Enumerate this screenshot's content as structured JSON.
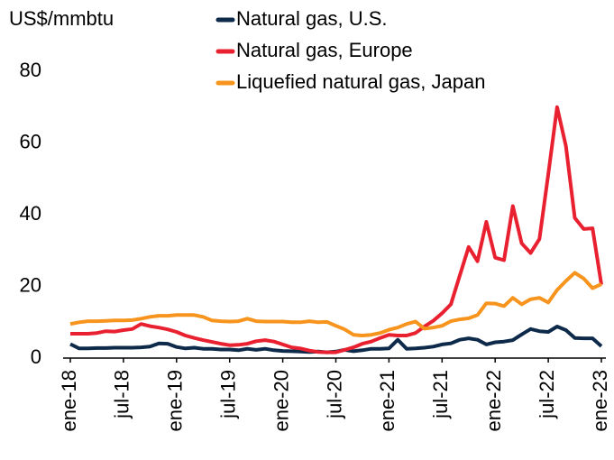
{
  "chart_data": {
    "type": "line",
    "y_label": "US$/mmbtu",
    "categories": [
      "ene-18",
      null,
      null,
      null,
      null,
      null,
      "jul-18",
      null,
      null,
      null,
      null,
      null,
      "ene-19",
      null,
      null,
      null,
      null,
      null,
      "jul-19",
      null,
      null,
      null,
      null,
      null,
      "ene-20",
      null,
      null,
      null,
      null,
      null,
      "jul-20",
      null,
      null,
      null,
      null,
      null,
      "ene-21",
      null,
      null,
      null,
      null,
      null,
      "jul-21",
      null,
      null,
      null,
      null,
      null,
      "ene-22",
      null,
      null,
      null,
      null,
      null,
      "jul-22",
      null,
      null,
      null,
      null,
      null,
      "ene-23"
    ],
    "series": [
      {
        "name": "Natural gas, U.S.",
        "color": "#0d2a4a",
        "values": [
          3.9,
          2.7,
          2.7,
          2.8,
          2.8,
          2.9,
          2.9,
          2.9,
          3.0,
          3.2,
          4.1,
          4.0,
          3.1,
          2.7,
          2.9,
          2.6,
          2.6,
          2.4,
          2.4,
          2.2,
          2.6,
          2.3,
          2.6,
          2.2,
          2.0,
          1.9,
          1.8,
          1.7,
          1.8,
          1.6,
          1.8,
          2.3,
          1.9,
          2.2,
          2.6,
          2.6,
          2.7,
          5.1,
          2.6,
          2.7,
          2.9,
          3.2,
          3.8,
          4.1,
          5.1,
          5.5,
          5.1,
          3.8,
          4.4,
          4.6,
          5.0,
          6.6,
          8.1,
          7.5,
          7.3,
          8.8,
          7.8,
          5.6,
          5.5,
          5.5,
          3.3
        ]
      },
      {
        "name": "Natural gas, Europe",
        "color": "#e8202f",
        "values": [
          6.8,
          6.8,
          6.8,
          7.0,
          7.5,
          7.4,
          7.8,
          8.1,
          9.5,
          8.9,
          8.5,
          8.0,
          7.3,
          6.3,
          5.6,
          5.0,
          4.5,
          4.0,
          3.6,
          3.7,
          4.0,
          4.7,
          5.0,
          4.6,
          3.8,
          3.0,
          2.7,
          2.1,
          1.7,
          1.6,
          1.6,
          2.3,
          3.0,
          4.0,
          4.6,
          5.6,
          6.5,
          6.3,
          6.3,
          7.0,
          8.8,
          10.4,
          12.5,
          15.0,
          23.0,
          31.0,
          27.0,
          38.0,
          28.0,
          27.3,
          42.4,
          32.0,
          29.3,
          33.2,
          51.3,
          70.0,
          59.1,
          39.1,
          36.0,
          36.2,
          20.5
        ]
      },
      {
        "name": "Liquefied natural gas, Japan",
        "color": "#f7941d",
        "values": [
          9.5,
          10.0,
          10.3,
          10.3,
          10.4,
          10.5,
          10.5,
          10.6,
          11.0,
          11.5,
          11.8,
          11.8,
          12.0,
          12.0,
          12.0,
          11.5,
          10.5,
          10.3,
          10.2,
          10.3,
          11.0,
          10.3,
          10.2,
          10.2,
          10.2,
          10.0,
          10.0,
          10.3,
          10.0,
          10.1,
          9.0,
          8.0,
          6.5,
          6.3,
          6.5,
          7.0,
          7.9,
          8.5,
          9.5,
          10.2,
          8.2,
          8.5,
          9.0,
          10.3,
          10.8,
          11.1,
          12.0,
          15.3,
          15.2,
          14.5,
          16.8,
          15.0,
          16.4,
          16.8,
          15.5,
          19.0,
          21.5,
          23.8,
          22.2,
          19.5,
          20.6
        ]
      }
    ],
    "ylim": [
      0,
      80
    ],
    "yticks": [
      0,
      20,
      40,
      60,
      80
    ],
    "grid": false,
    "legend": "top"
  }
}
